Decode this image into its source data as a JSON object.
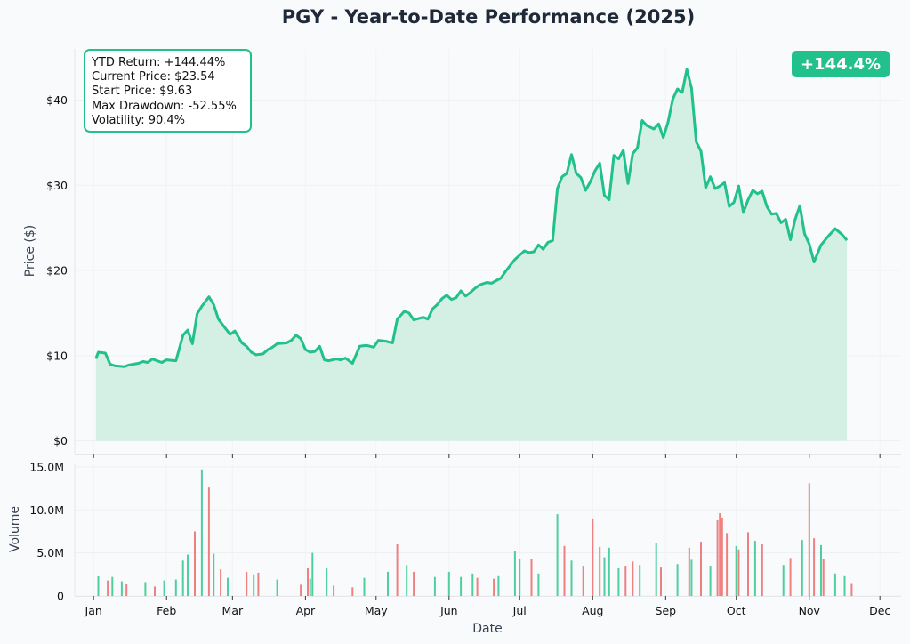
{
  "chart_data": [
    {
      "type": "area",
      "title": "PGY - Year-to-Date Performance (2025)",
      "ylabel": "Price ($)",
      "ylim": [
        -1.5,
        46
      ],
      "yticks": [
        0,
        10,
        20,
        30,
        40
      ],
      "ytick_labels": [
        "$0",
        "$10",
        "$20",
        "$30",
        "$40"
      ],
      "grid": true,
      "line_color": "#22c08a",
      "fill_color": "#d4efe4",
      "series": [
        {
          "points": [
            [
              "2025-01-02",
              9.63
            ],
            [
              "2025-01-03",
              10.4
            ],
            [
              "2025-01-06",
              10.3
            ],
            [
              "2025-01-08",
              9.0
            ],
            [
              "2025-01-10",
              8.8
            ],
            [
              "2025-01-14",
              8.7
            ],
            [
              "2025-01-16",
              8.9
            ],
            [
              "2025-01-20",
              9.1
            ],
            [
              "2025-01-22",
              9.3
            ],
            [
              "2025-01-24",
              9.2
            ],
            [
              "2025-01-26",
              9.6
            ],
            [
              "2025-01-28",
              9.4
            ],
            [
              "2025-01-30",
              9.2
            ],
            [
              "2025-02-01",
              9.5
            ],
            [
              "2025-02-05",
              9.4
            ],
            [
              "2025-02-08",
              12.4
            ],
            [
              "2025-02-10",
              13.0
            ],
            [
              "2025-02-12",
              11.4
            ],
            [
              "2025-02-14",
              14.9
            ],
            [
              "2025-02-16",
              15.8
            ],
            [
              "2025-02-19",
              16.9
            ],
            [
              "2025-02-21",
              16.0
            ],
            [
              "2025-02-23",
              14.3
            ],
            [
              "2025-02-26",
              13.2
            ],
            [
              "2025-02-28",
              12.5
            ],
            [
              "2025-03-02",
              12.9
            ],
            [
              "2025-03-05",
              11.5
            ],
            [
              "2025-03-07",
              11.1
            ],
            [
              "2025-03-09",
              10.4
            ],
            [
              "2025-03-11",
              10.1
            ],
            [
              "2025-03-14",
              10.2
            ],
            [
              "2025-03-16",
              10.7
            ],
            [
              "2025-03-18",
              11.0
            ],
            [
              "2025-03-20",
              11.4
            ],
            [
              "2025-03-24",
              11.5
            ],
            [
              "2025-03-26",
              11.8
            ],
            [
              "2025-03-28",
              12.4
            ],
            [
              "2025-03-30",
              12.0
            ],
            [
              "2025-04-01",
              10.7
            ],
            [
              "2025-04-03",
              10.4
            ],
            [
              "2025-04-05",
              10.5
            ],
            [
              "2025-04-07",
              11.1
            ],
            [
              "2025-04-09",
              9.5
            ],
            [
              "2025-04-11",
              9.4
            ],
            [
              "2025-04-14",
              9.6
            ],
            [
              "2025-04-16",
              9.5
            ],
            [
              "2025-04-18",
              9.7
            ],
            [
              "2025-04-21",
              9.1
            ],
            [
              "2025-04-24",
              11.1
            ],
            [
              "2025-04-27",
              11.2
            ],
            [
              "2025-04-30",
              11.0
            ],
            [
              "2025-05-02",
              11.8
            ],
            [
              "2025-05-05",
              11.7
            ],
            [
              "2025-05-08",
              11.5
            ],
            [
              "2025-05-10",
              14.3
            ],
            [
              "2025-05-13",
              15.2
            ],
            [
              "2025-05-15",
              15.0
            ],
            [
              "2025-05-17",
              14.2
            ],
            [
              "2025-05-21",
              14.5
            ],
            [
              "2025-05-23",
              14.3
            ],
            [
              "2025-05-25",
              15.5
            ],
            [
              "2025-05-27",
              16.0
            ],
            [
              "2025-05-29",
              16.7
            ],
            [
              "2025-05-31",
              17.1
            ],
            [
              "2025-06-02",
              16.6
            ],
            [
              "2025-06-04",
              16.8
            ],
            [
              "2025-06-06",
              17.6
            ],
            [
              "2025-06-08",
              17.0
            ],
            [
              "2025-06-10",
              17.4
            ],
            [
              "2025-06-12",
              17.9
            ],
            [
              "2025-06-14",
              18.3
            ],
            [
              "2025-06-17",
              18.6
            ],
            [
              "2025-06-19",
              18.5
            ],
            [
              "2025-06-21",
              18.8
            ],
            [
              "2025-06-23",
              19.1
            ],
            [
              "2025-06-25",
              19.9
            ],
            [
              "2025-06-27",
              20.6
            ],
            [
              "2025-06-29",
              21.3
            ],
            [
              "2025-07-01",
              21.8
            ],
            [
              "2025-07-03",
              22.3
            ],
            [
              "2025-07-05",
              22.1
            ],
            [
              "2025-07-07",
              22.2
            ],
            [
              "2025-07-09",
              23.0
            ],
            [
              "2025-07-11",
              22.5
            ],
            [
              "2025-07-13",
              23.3
            ],
            [
              "2025-07-15",
              23.5
            ],
            [
              "2025-07-17",
              29.6
            ],
            [
              "2025-07-19",
              31.0
            ],
            [
              "2025-07-21",
              31.4
            ],
            [
              "2025-07-23",
              33.6
            ],
            [
              "2025-07-25",
              31.4
            ],
            [
              "2025-07-27",
              30.9
            ],
            [
              "2025-07-29",
              29.4
            ],
            [
              "2025-07-31",
              30.4
            ],
            [
              "2025-08-02",
              31.7
            ],
            [
              "2025-08-04",
              32.6
            ],
            [
              "2025-08-06",
              28.8
            ],
            [
              "2025-08-08",
              28.3
            ],
            [
              "2025-08-10",
              33.5
            ],
            [
              "2025-08-12",
              33.1
            ],
            [
              "2025-08-14",
              34.1
            ],
            [
              "2025-08-16",
              30.2
            ],
            [
              "2025-08-18",
              33.7
            ],
            [
              "2025-08-20",
              34.4
            ],
            [
              "2025-08-22",
              37.6
            ],
            [
              "2025-08-24",
              37.0
            ],
            [
              "2025-08-27",
              36.6
            ],
            [
              "2025-08-29",
              37.2
            ],
            [
              "2025-08-31",
              35.6
            ],
            [
              "2025-09-02",
              37.4
            ],
            [
              "2025-09-04",
              40.1
            ],
            [
              "2025-09-06",
              41.3
            ],
            [
              "2025-09-08",
              40.9
            ],
            [
              "2025-09-10",
              43.6
            ],
            [
              "2025-09-12",
              41.4
            ],
            [
              "2025-09-14",
              35.1
            ],
            [
              "2025-09-16",
              34.0
            ],
            [
              "2025-09-18",
              29.7
            ],
            [
              "2025-09-20",
              31.0
            ],
            [
              "2025-09-22",
              29.6
            ],
            [
              "2025-09-24",
              29.9
            ],
            [
              "2025-09-26",
              30.3
            ],
            [
              "2025-09-28",
              27.5
            ],
            [
              "2025-09-30",
              28.0
            ],
            [
              "2025-10-02",
              29.9
            ],
            [
              "2025-10-04",
              26.8
            ],
            [
              "2025-10-06",
              28.3
            ],
            [
              "2025-10-08",
              29.4
            ],
            [
              "2025-10-10",
              29.0
            ],
            [
              "2025-10-12",
              29.3
            ],
            [
              "2025-10-14",
              27.5
            ],
            [
              "2025-10-16",
              26.6
            ],
            [
              "2025-10-18",
              26.7
            ],
            [
              "2025-10-20",
              25.6
            ],
            [
              "2025-10-22",
              26.0
            ],
            [
              "2025-10-24",
              23.6
            ],
            [
              "2025-10-26",
              26.0
            ],
            [
              "2025-10-28",
              27.6
            ],
            [
              "2025-10-30",
              24.3
            ],
            [
              "2025-11-01",
              23.1
            ],
            [
              "2025-11-03",
              21.0
            ],
            [
              "2025-11-06",
              23.0
            ],
            [
              "2025-11-09",
              24.0
            ],
            [
              "2025-11-12",
              24.9
            ],
            [
              "2025-11-15",
              24.2
            ],
            [
              "2025-11-17",
              23.54
            ]
          ]
        }
      ],
      "stats_box": [
        "YTD Return: +144.44%",
        "Current Price: $23.54",
        "Start Price: $9.63",
        "Max Drawdown: -52.55%",
        "Volatility: 90.4%"
      ],
      "badge": "+144.4%"
    },
    {
      "type": "bar",
      "ylabel": "Volume",
      "xlabel": "Date",
      "ylim": [
        0,
        15000000
      ],
      "yticks": [
        0,
        5000000,
        10000000,
        15000000
      ],
      "ytick_labels": [
        "0",
        "5.0M",
        "10.0M",
        "15.0M"
      ],
      "x_ticks": [
        "2025-01-01",
        "2025-02-01",
        "2025-03-01",
        "2025-04-01",
        "2025-05-01",
        "2025-06-01",
        "2025-07-01",
        "2025-08-01",
        "2025-09-01",
        "2025-10-01",
        "2025-11-01",
        "2025-12-01"
      ],
      "x_tick_labels": [
        "Jan",
        "Feb",
        "Mar",
        "Apr",
        "May",
        "Jun",
        "Jul",
        "Aug",
        "Sep",
        "Oct",
        "Nov",
        "Dec"
      ],
      "x_range": [
        "2024-12-24",
        "2025-12-10"
      ],
      "up_color": "#4fcfa0",
      "down_color": "#ee8080",
      "series": [
        {
          "name": "up",
          "points": [
            [
              "2025-01-03",
              2300000
            ],
            [
              "2025-01-09",
              2200000
            ],
            [
              "2025-01-13",
              1700000
            ],
            [
              "2025-01-23",
              1600000
            ],
            [
              "2025-01-31",
              1800000
            ],
            [
              "2025-02-05",
              1900000
            ],
            [
              "2025-02-08",
              4100000
            ],
            [
              "2025-02-10",
              4800000
            ],
            [
              "2025-02-16",
              14700000
            ],
            [
              "2025-02-21",
              4900000
            ],
            [
              "2025-02-27",
              2100000
            ],
            [
              "2025-03-10",
              2500000
            ],
            [
              "2025-03-20",
              1900000
            ],
            [
              "2025-04-03",
              2000000
            ],
            [
              "2025-04-04",
              5000000
            ],
            [
              "2025-04-10",
              3200000
            ],
            [
              "2025-04-26",
              2100000
            ],
            [
              "2025-05-06",
              2800000
            ],
            [
              "2025-05-14",
              3600000
            ],
            [
              "2025-05-26",
              2200000
            ],
            [
              "2025-06-01",
              2800000
            ],
            [
              "2025-06-06",
              2200000
            ],
            [
              "2025-06-11",
              2600000
            ],
            [
              "2025-06-22",
              2400000
            ],
            [
              "2025-06-29",
              5200000
            ],
            [
              "2025-07-01",
              4300000
            ],
            [
              "2025-07-09",
              2600000
            ],
            [
              "2025-07-17",
              9500000
            ],
            [
              "2025-07-23",
              4100000
            ],
            [
              "2025-08-06",
              4500000
            ],
            [
              "2025-08-08",
              5600000
            ],
            [
              "2025-08-12",
              3300000
            ],
            [
              "2025-08-21",
              3600000
            ],
            [
              "2025-08-28",
              6200000
            ],
            [
              "2025-09-06",
              3700000
            ],
            [
              "2025-09-12",
              4200000
            ],
            [
              "2025-09-20",
              3500000
            ],
            [
              "2025-10-01",
              5800000
            ],
            [
              "2025-10-09",
              6400000
            ],
            [
              "2025-10-21",
              3600000
            ],
            [
              "2025-10-29",
              6500000
            ],
            [
              "2025-11-06",
              5900000
            ],
            [
              "2025-11-12",
              2600000
            ],
            [
              "2025-11-16",
              2400000
            ]
          ]
        },
        {
          "name": "down",
          "points": [
            [
              "2025-01-07",
              1800000
            ],
            [
              "2025-01-15",
              1400000
            ],
            [
              "2025-01-27",
              1100000
            ],
            [
              "2025-02-13",
              7500000
            ],
            [
              "2025-02-19",
              12600000
            ],
            [
              "2025-02-24",
              3100000
            ],
            [
              "2025-03-07",
              2800000
            ],
            [
              "2025-03-12",
              2700000
            ],
            [
              "2025-03-30",
              1300000
            ],
            [
              "2025-04-02",
              3300000
            ],
            [
              "2025-04-13",
              1200000
            ],
            [
              "2025-04-21",
              1000000
            ],
            [
              "2025-05-10",
              6000000
            ],
            [
              "2025-05-17",
              2800000
            ],
            [
              "2025-06-13",
              2100000
            ],
            [
              "2025-06-20",
              2000000
            ],
            [
              "2025-07-06",
              4300000
            ],
            [
              "2025-07-20",
              5800000
            ],
            [
              "2025-07-28",
              3500000
            ],
            [
              "2025-08-01",
              9000000
            ],
            [
              "2025-08-04",
              5700000
            ],
            [
              "2025-08-15",
              3500000
            ],
            [
              "2025-08-18",
              4000000
            ],
            [
              "2025-08-30",
              3400000
            ],
            [
              "2025-09-11",
              5600000
            ],
            [
              "2025-09-16",
              6300000
            ],
            [
              "2025-09-23",
              8800000
            ],
            [
              "2025-09-24",
              9600000
            ],
            [
              "2025-09-25",
              9100000
            ],
            [
              "2025-09-27",
              7300000
            ],
            [
              "2025-10-02",
              5400000
            ],
            [
              "2025-10-06",
              7400000
            ],
            [
              "2025-10-12",
              6000000
            ],
            [
              "2025-10-24",
              4400000
            ],
            [
              "2025-11-01",
              13100000
            ],
            [
              "2025-11-03",
              6700000
            ],
            [
              "2025-11-07",
              4300000
            ],
            [
              "2025-11-19",
              1500000
            ]
          ]
        }
      ]
    }
  ]
}
